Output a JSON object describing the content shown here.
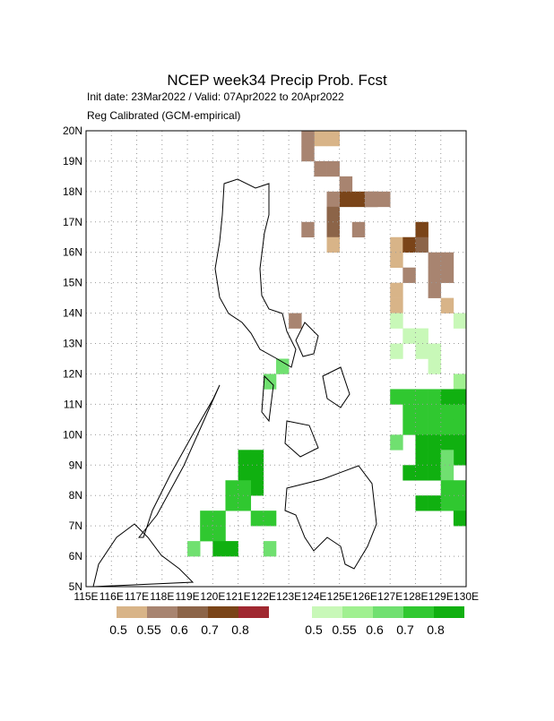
{
  "title": "NCEP week34 Precip Prob. Fcst",
  "subtitle": "Init date: 23Mar2022 / Valid: 07Apr2022 to 20Apr2022",
  "method": "Reg Calibrated (GCM-empirical)",
  "yticks": [
    "5N",
    "6N",
    "7N",
    "8N",
    "9N",
    "10N",
    "11N",
    "12N",
    "13N",
    "14N",
    "15N",
    "16N",
    "17N",
    "18N",
    "19N",
    "20N"
  ],
  "xticks": [
    "115E",
    "116E",
    "117E",
    "118E",
    "119E",
    "120E",
    "121E",
    "122E",
    "123E",
    "124E",
    "125E",
    "126E",
    "127E",
    "128E",
    "129E",
    "130E"
  ],
  "dry_legend": {
    "colors": [
      "#d8b488",
      "#a88470",
      "#8c6448",
      "#7a4418",
      "#a02830"
    ],
    "labels": [
      "0.5",
      "0.55",
      "0.6",
      "0.7",
      "0.8"
    ]
  },
  "wet_legend": {
    "colors": [
      "#c8f8b8",
      "#a0f090",
      "#70e070",
      "#30c830",
      "#10b010"
    ],
    "labels": [
      "0.5",
      "0.55",
      "0.6",
      "0.7",
      "0.8"
    ]
  }
}
